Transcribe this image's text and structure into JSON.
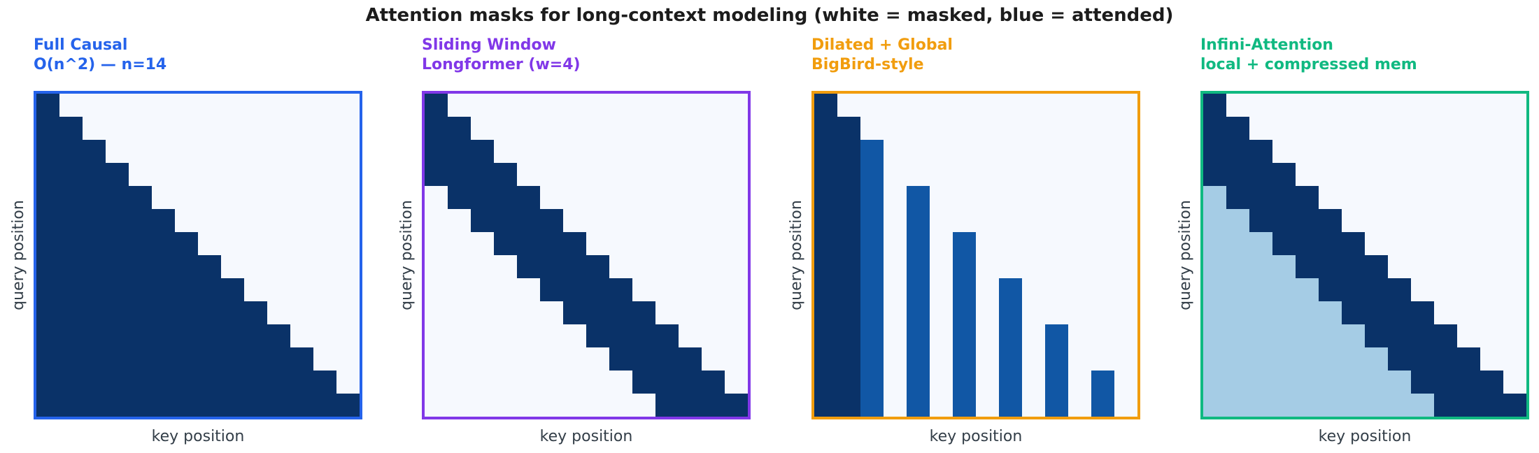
{
  "title": "Attention masks for long-context modeling (white = masked, blue = attended)",
  "chart_data": {
    "type": "heatmap",
    "n": 14,
    "figure_title": "Attention masks for long-context modeling (white = masked, blue = attended)",
    "xlabel": "key position",
    "ylabel": "query position",
    "grid": "off",
    "cell_values": {
      "#": 1.0,
      "+": 0.8,
      "o": 0.35,
      ".": 0.0
    },
    "cell_colors": {
      "#": "#0a3268",
      "+": "#1157a5",
      "o": "#a5cce5",
      ".": "#f6f9fe"
    },
    "value_legend": {
      "1.0": "attended (dark navy)",
      "0.8": "dilated/global column (medium blue)",
      "0.35": "compressed memory (light blue)",
      "0.0": "masked (white)"
    },
    "panels": [
      {
        "name": "full-causal",
        "title_line1": "Full Causal",
        "title_line2": "O(n^2) — n=14",
        "accent_color": "#2563eb",
        "mask_rows": [
          "#.............",
          "##............",
          "###...........",
          "####..........",
          "#####.........",
          "######........",
          "#######.......",
          "########......",
          "#########.....",
          "##########....",
          "###########...",
          "############..",
          "#############.",
          "##############"
        ]
      },
      {
        "name": "sliding-window",
        "title_line1": "Sliding Window",
        "title_line2": "Longformer (w=4)",
        "accent_color": "#8138e8",
        "mask_rows": [
          "#.............",
          "##............",
          "###...........",
          "####..........",
          ".####.........",
          "..####........",
          "...####.......",
          "....####......",
          ".....####.....",
          "......####....",
          ".......####...",
          "........####..",
          ".........####.",
          "..........####"
        ]
      },
      {
        "name": "dilated-global",
        "title_line1": "Dilated + Global",
        "title_line2": "BigBird-style",
        "accent_color": "#f19d0e",
        "mask_rows": [
          "#.............",
          "##............",
          "##+...........",
          "##+...........",
          "##+.+.........",
          "##+.+.........",
          "##+.+.+.......",
          "##+.+.+.......",
          "##+.+.+.+.....",
          "##+.+.+.+.....",
          "##+.+.+.+.+...",
          "##+.+.+.+.+...",
          "##+.+.+.+.+.+.",
          "##+.+.+.+.+.+."
        ]
      },
      {
        "name": "infini-attention",
        "title_line1": "Infini-Attention",
        "title_line2": "local + compressed mem",
        "accent_color": "#10b981",
        "mask_rows": [
          "#.............",
          "##............",
          "###...........",
          "####..........",
          "o####.........",
          "oo####........",
          "ooo####.......",
          "oooo####......",
          "ooooo####.....",
          "oooooo####....",
          "ooooooo####...",
          "oooooooo####..",
          "ooooooooo####.",
          "oooooooooo####"
        ]
      }
    ]
  }
}
